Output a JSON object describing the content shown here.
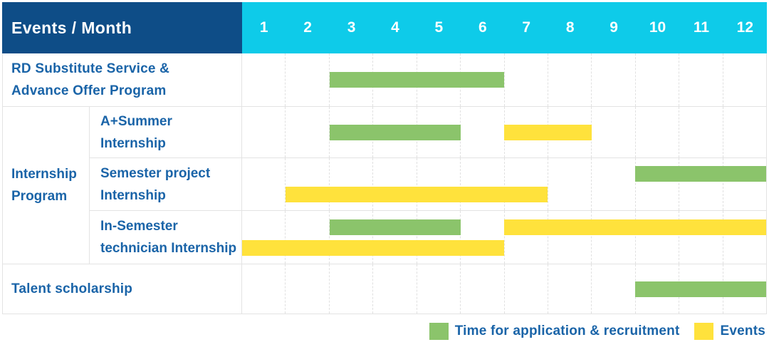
{
  "header": {
    "title": "Events / Month",
    "months": [
      "1",
      "2",
      "3",
      "4",
      "5",
      "6",
      "7",
      "8",
      "9",
      "10",
      "11",
      "12"
    ]
  },
  "colors": {
    "header_bg": "#0E4D87",
    "month_header_bg": "#0ECBE9",
    "text_blue": "#1A64A8",
    "green": "#8BC46B",
    "yellow": "#FFE23C"
  },
  "legend": {
    "items": [
      {
        "label": "Time for application & recruitment",
        "color": "green"
      },
      {
        "label": "Events",
        "color": "yellow"
      }
    ]
  },
  "group_label": {
    "line1": "Internship",
    "line2": "Program"
  },
  "chart_data": {
    "type": "gantt",
    "title": "Events / Month",
    "x_axis": {
      "unit": "month",
      "ticks": [
        1,
        2,
        3,
        4,
        5,
        6,
        7,
        8,
        9,
        10,
        11,
        12
      ],
      "range": [
        1,
        12
      ],
      "grid": true
    },
    "legend_position": "bottom-right",
    "series_legend": {
      "green": "Time for application & recruitment",
      "yellow": "Events"
    },
    "rows": [
      {
        "group": "",
        "label_line1": "RD Substitute Service &",
        "label_line2": "Advance Offer Program",
        "lanes": [
          [
            {
              "color": "green",
              "series": "Time for application & recruitment",
              "start_month": 3,
              "end_month": 6
            }
          ]
        ]
      },
      {
        "group": "Internship Program",
        "label_line1": "A+Summer",
        "label_line2": "Internship",
        "lanes": [
          [
            {
              "color": "green",
              "series": "Time for application & recruitment",
              "start_month": 3,
              "end_month": 5
            },
            {
              "color": "yellow",
              "series": "Events",
              "start_month": 7,
              "end_month": 8
            }
          ]
        ]
      },
      {
        "group": "Internship Program",
        "label_line1": "Semester project",
        "label_line2": "Internship",
        "lanes": [
          [
            {
              "color": "green",
              "series": "Time for application & recruitment",
              "start_month": 10,
              "end_month": 12
            }
          ],
          [
            {
              "color": "yellow",
              "series": "Events",
              "start_month": 2,
              "end_month": 7
            }
          ]
        ]
      },
      {
        "group": "Internship Program",
        "label_line1": "In-Semester",
        "label_line2": "technician Internship",
        "lanes": [
          [
            {
              "color": "green",
              "series": "Time for application & recruitment",
              "start_month": 3,
              "end_month": 5
            },
            {
              "color": "yellow",
              "series": "Events",
              "start_month": 7,
              "end_month": 12
            }
          ],
          [
            {
              "color": "yellow",
              "series": "Events",
              "start_month": 1,
              "end_month": 6
            }
          ]
        ]
      },
      {
        "group": "",
        "label_line1": "Talent scholarship",
        "label_line2": "",
        "lanes": [
          [
            {
              "color": "green",
              "series": "Time for application & recruitment",
              "start_month": 10,
              "end_month": 12
            }
          ]
        ]
      }
    ]
  }
}
